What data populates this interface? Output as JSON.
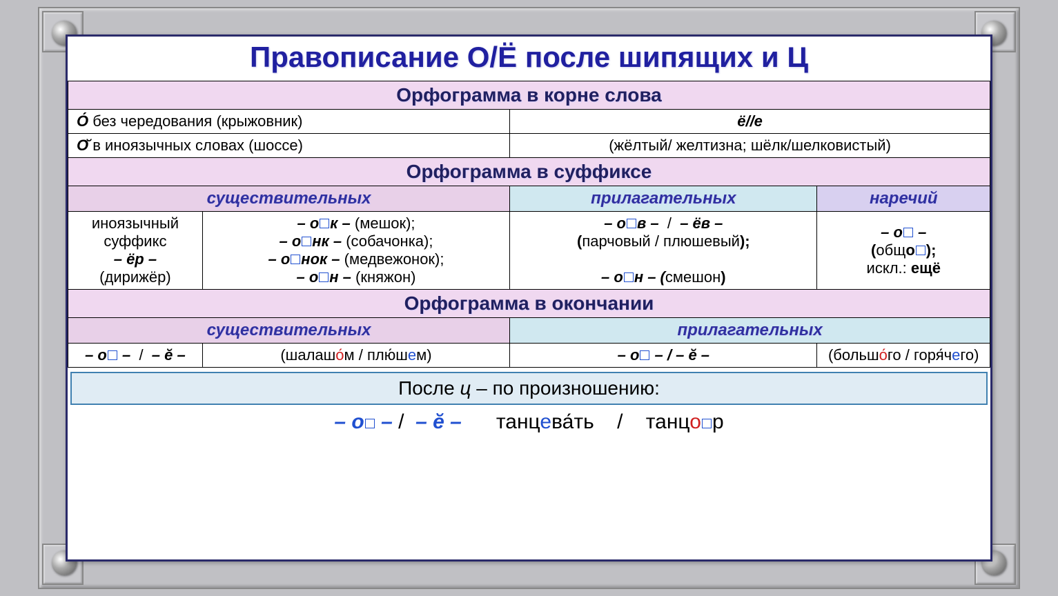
{
  "title": "Правописание О/Ё после шипящих и Ц",
  "colors": {
    "title": "#2020a0",
    "section_bg": "#f0d8f0",
    "sub_pink": "#e8d0e8",
    "sub_blue": "#d0e8f0",
    "sub_lav": "#d8d0f0",
    "bottom_bg": "#e0ecf4",
    "border": "#000000",
    "accent_blue": "#2050d0",
    "accent_red": "#d02020"
  },
  "sec1": {
    "header": "Орфограмма в корне слова",
    "left1_html": "<em class='b'><span class='stress'>О</span></em> без чередования (крыжовник)",
    "left2_html": "<em class='b'><span class='brev'>О</span></em> в иноязычных словах (шоссе)",
    "right1_html": "<em class='b'>ё//е</em>",
    "right2_html": "(жёлтый/ желтизна; шёлк/шелковистый)"
  },
  "sec2": {
    "header": "Орфограмма в суффиксе",
    "cols": [
      "существительных",
      "прилагательных",
      "наречий"
    ],
    "noun1_html": "иноязычный<br>суффикс<br><em class='b'>– ёр –</em><br>(дирижёр)",
    "noun2_html": "<em class='b'>– о<span class='sq'></span>к –</em> (мешок);<br><em class='b'>– о<span class='sq'></span>нк –</em> (собачонка);<br><em class='b'>– о<span class='sq'></span>нок –</em> (медвежонок);<br><em class='b'>– о<span class='sq'></span>н –</em> (княжон)",
    "adj_html": "<em class='b'>– о<span class='sq'></span>в –</em> &nbsp;/&nbsp; <em class='b'>– ёв –</em><br><b>(</b>парчовый / плюшевый<b>);</b><br><br><em class='b'>– о<span class='sq'></span>н – (</em>смешон<b>)</b>",
    "adv_html": "<em class='b'>– о<span class='sq'></span> –</em><br><b>(</b>общ<b>о<span class='sq'></span>);</b><br>искл.: <b>ещё</b>"
  },
  "sec3": {
    "header": "Орфограмма в окончании",
    "cols": [
      "существительных",
      "прилагательных"
    ],
    "noun_l_html": "<em class='b'>– о<span class='sq'></span> –</em> &nbsp;/&nbsp; <em class='b'>– <span class='brev'>е</span> –</em>",
    "noun_r_html": "(шалаш<span class='red-o stress'>о</span>м / пл<span class='stress'>ю</span>ш<span class='blue-e'>е</span>м)",
    "adj_l_html": "<em class='b'>– о<span class='sq'></span> – / – <span class='brev'>е</span> –</em>",
    "adj_r_html": "(больш<span class='red-o stress'>о</span>го / гор<span class='stress'>я</span>ч<span class='blue-e'>е</span>го)"
  },
  "sec4": {
    "header_html": "После <em>ц</em> – по произношению:",
    "row_html": "<span class='blue-o'>– о<span class='sq'></span> –</span> / &nbsp;<span class='blue-o'>– <span class='brev'>е</span> –</span> &nbsp;&nbsp;&nbsp;&nbsp; танц<span class='blue-e'>е</span>в<span class='stress'>а</span>ть &nbsp;&nbsp;&nbsp;/&nbsp;&nbsp;&nbsp; танц<span class='red-o'>о</span><span class='sq'></span>р"
  }
}
